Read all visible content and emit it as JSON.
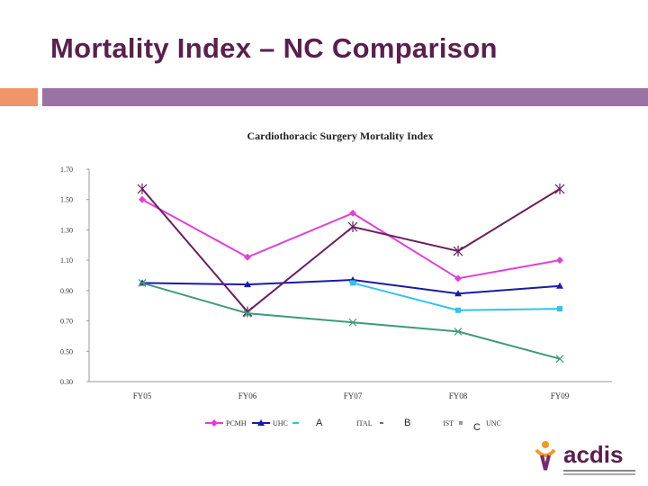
{
  "slide": {
    "title": "Mortality Index – NC Comparison"
  },
  "chart_data": {
    "type": "line",
    "title": "Cardiothoracic Surgery Mortality Index",
    "categories": [
      "FY05",
      "FY06",
      "FY07",
      "FY08",
      "FY09"
    ],
    "ylim": [
      0.3,
      1.7
    ],
    "yticks": [
      "1.70",
      "1.50",
      "1.30",
      "1.10",
      "0.90",
      "0.70",
      "0.50",
      "0.30"
    ],
    "grid": false,
    "legend_position": "bottom",
    "series": [
      {
        "name": "PCMH",
        "color": "#e23fd8",
        "marker": "diamond",
        "values": [
          1.5,
          1.12,
          1.41,
          0.98,
          1.1
        ]
      },
      {
        "name": "UHC",
        "color": "#1a1aa8",
        "marker": "triangle",
        "values": [
          0.95,
          0.94,
          0.97,
          0.88,
          0.93
        ]
      },
      {
        "name": "",
        "color": "#2ec4ee",
        "marker": "square",
        "values": [
          null,
          null,
          0.95,
          0.77,
          0.78
        ]
      },
      {
        "name": "",
        "color": "#6b1f5e",
        "marker": "star",
        "values": [
          1.57,
          0.76,
          1.32,
          1.16,
          1.57
        ]
      },
      {
        "name": "",
        "color": "#3d9a7a",
        "marker": "x",
        "values": [
          0.95,
          0.75,
          0.69,
          0.63,
          0.45
        ]
      }
    ],
    "legend_fragments": [
      "ITAL",
      "IST",
      "UNC"
    ],
    "overlay_labels": [
      "A",
      "B",
      "C"
    ]
  },
  "logo": {
    "text": "acdis"
  }
}
